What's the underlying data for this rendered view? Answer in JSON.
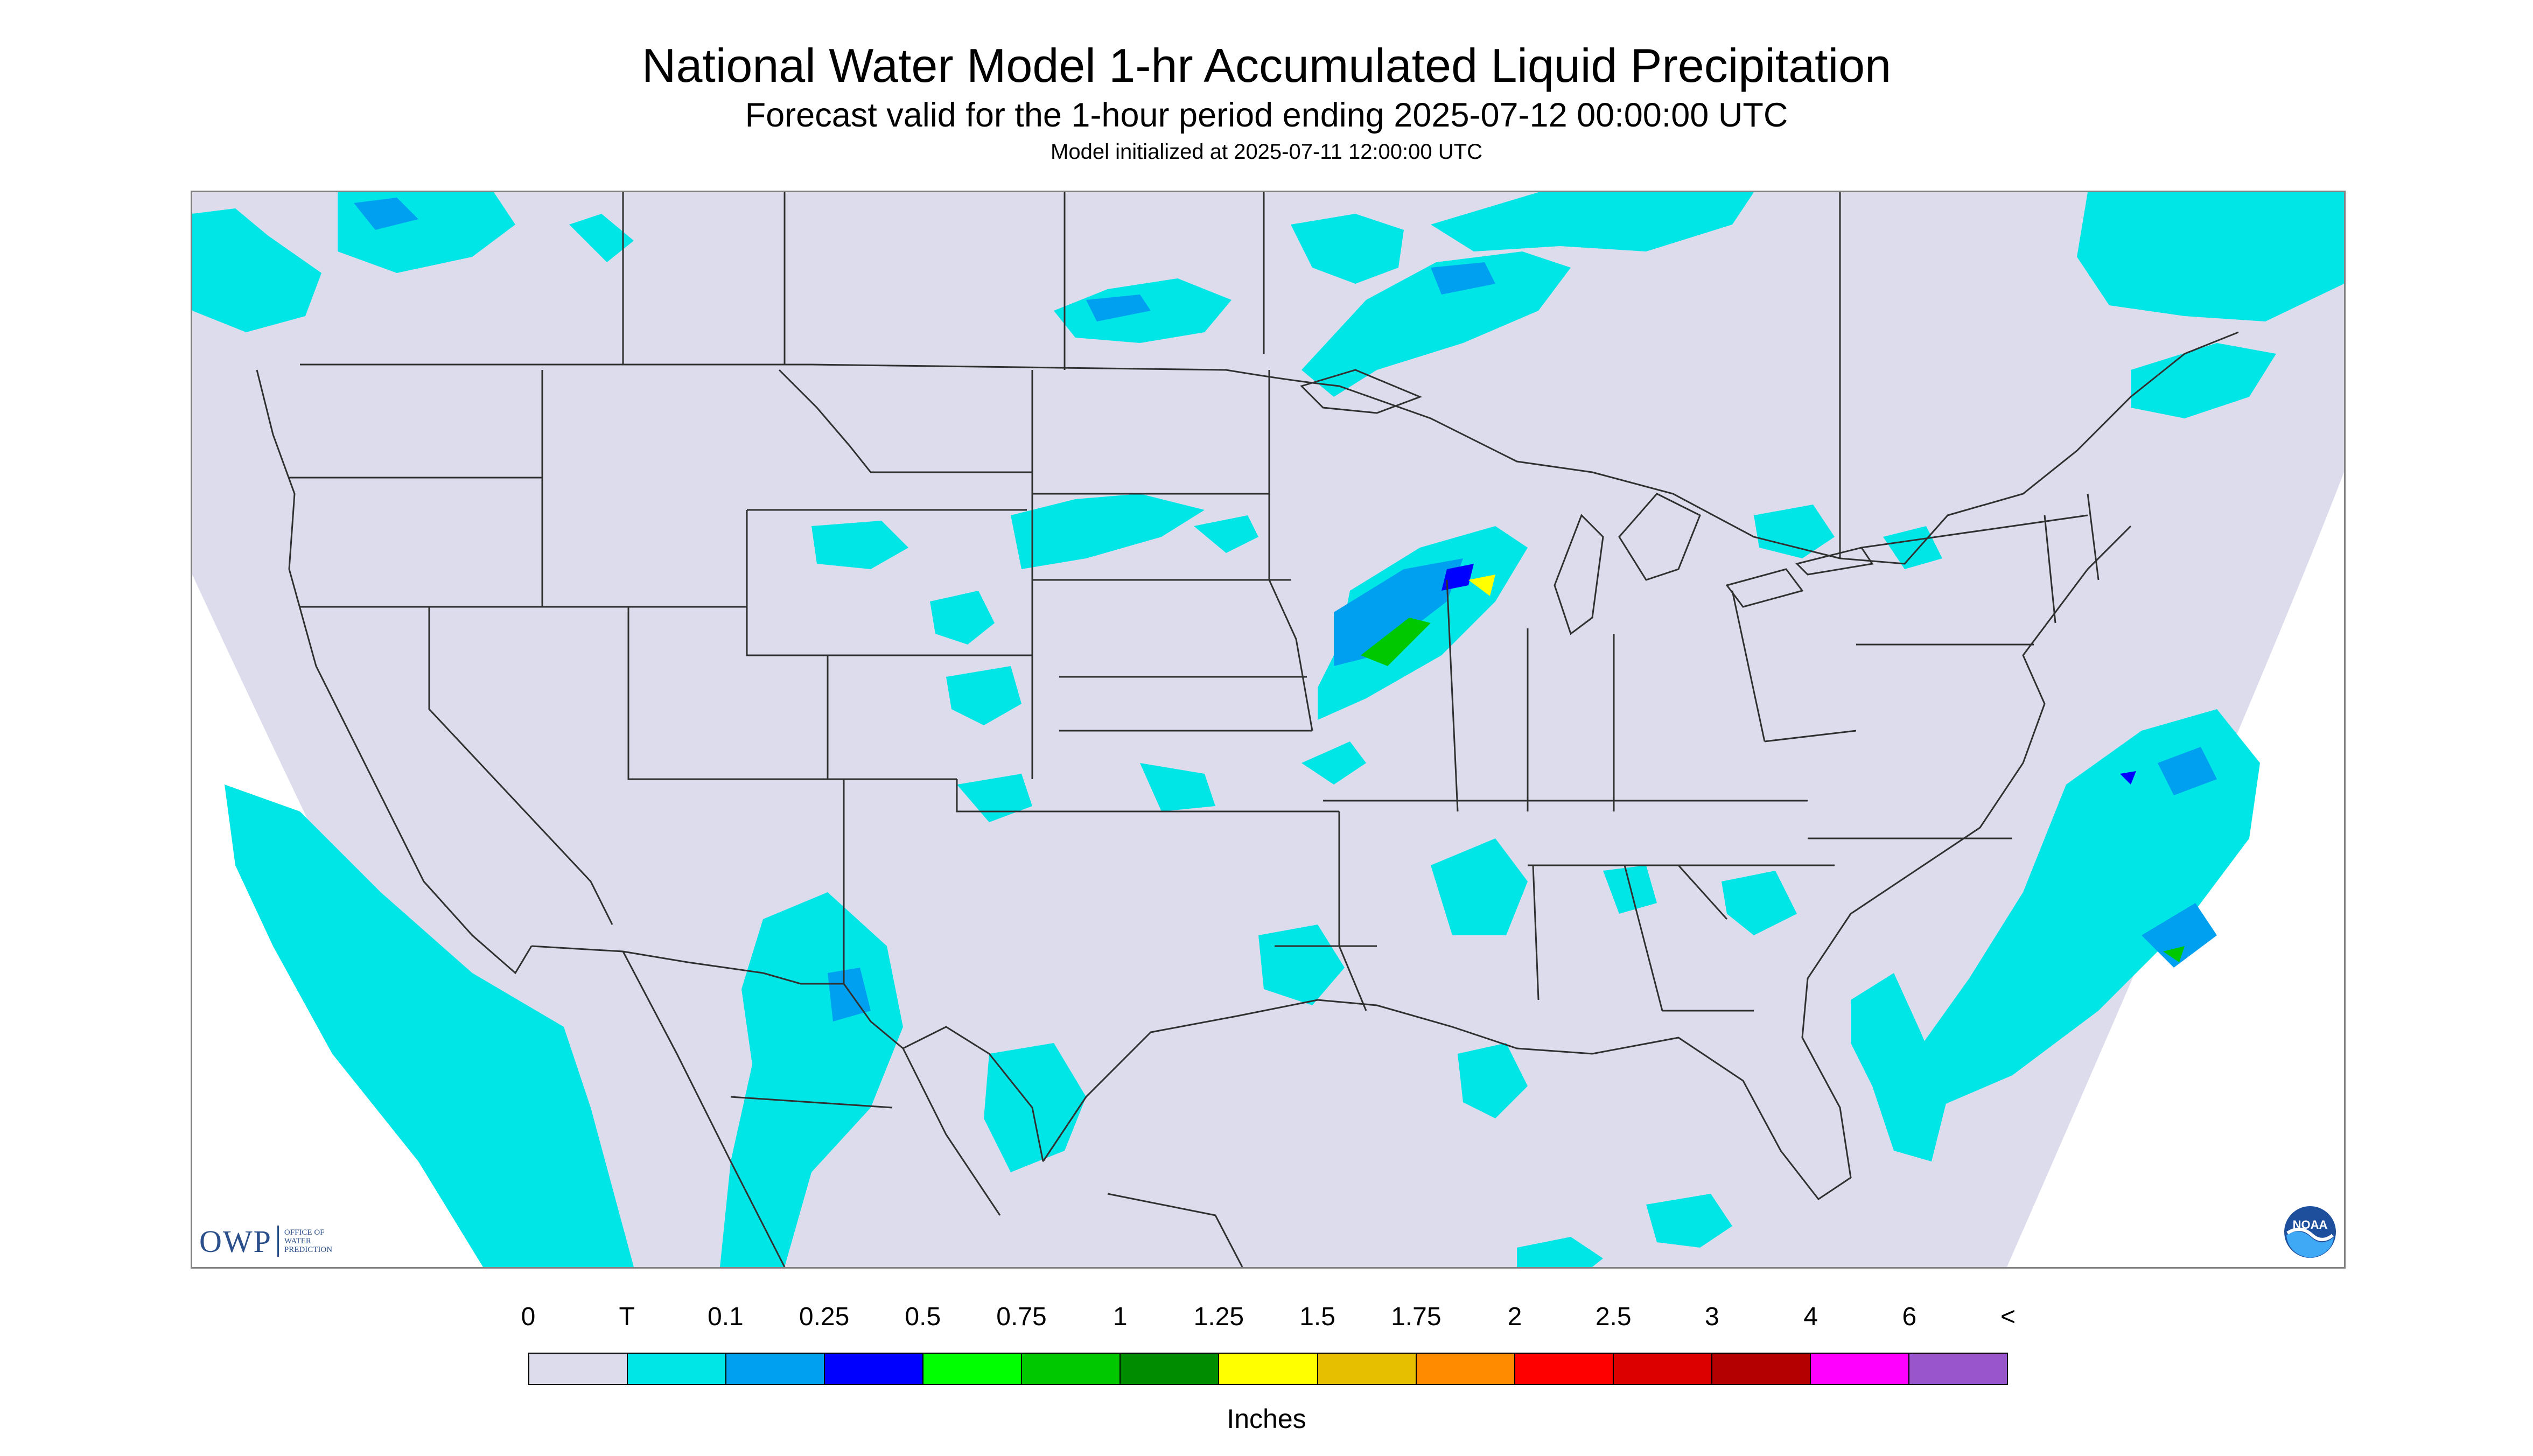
{
  "header": {
    "title": "National Water Model 1-hr Accumulated Liquid Precipitation",
    "subtitle": "Forecast valid for the 1-hour period ending 2025-07-12 00:00:00 UTC",
    "init": "Model initialized at 2025-07-11 12:00:00 UTC"
  },
  "map": {
    "background_color": "#dcdcec",
    "boundary_color": "#303030",
    "light_precip_color": "#00e5e5",
    "moderate_precip_color": "#00a0f0"
  },
  "logos": {
    "owp_text": "OWP",
    "owp_small": [
      "OFFICE OF",
      "WATER",
      "PREDICTION"
    ],
    "noaa_text": "NOAA"
  },
  "legend": {
    "tick_labels": [
      "0",
      "T",
      "0.1",
      "0.25",
      "0.5",
      "0.75",
      "1",
      "1.25",
      "1.5",
      "1.75",
      "2",
      "2.5",
      "3",
      "4",
      "6",
      "<"
    ],
    "colors": [
      "#dcdcec",
      "#00e5e5",
      "#00a0f0",
      "#0000ff",
      "#00ff00",
      "#00c800",
      "#008c00",
      "#ffff00",
      "#e6c000",
      "#ff8c00",
      "#ff0000",
      "#dc0000",
      "#b40000",
      "#ff00ff",
      "#9955cc"
    ],
    "units": "Inches"
  }
}
